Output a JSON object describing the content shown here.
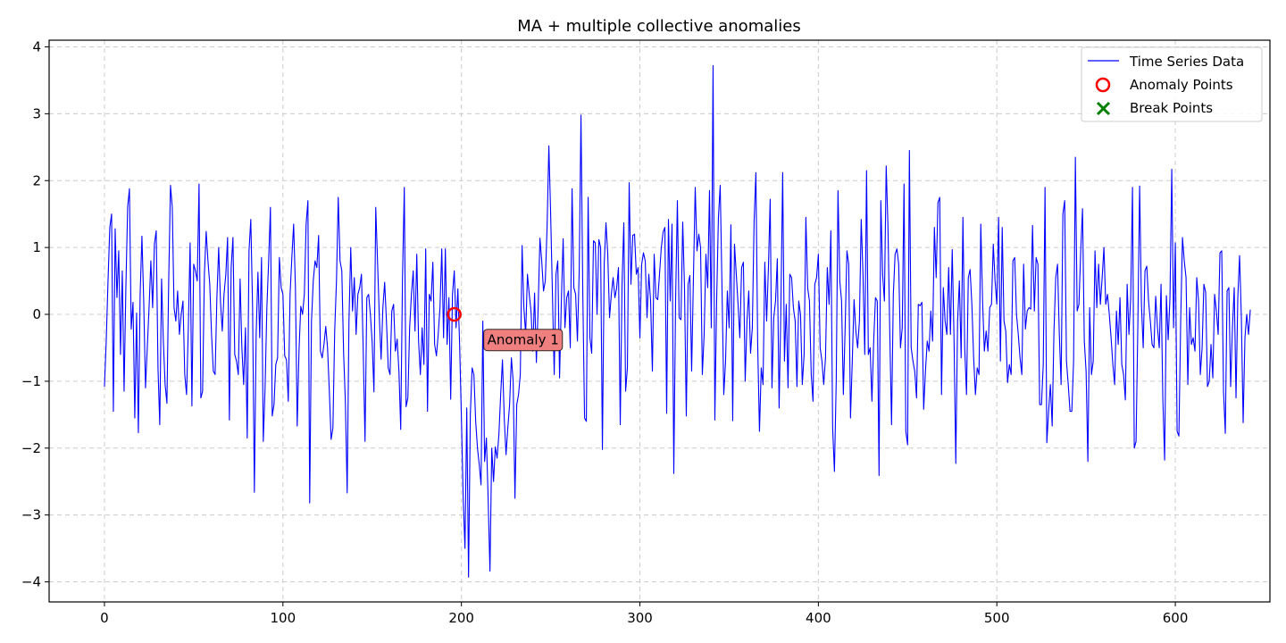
{
  "chart_data": {
    "type": "line",
    "title": "MA + multiple collective anomalies",
    "xlabel": "",
    "ylabel": "",
    "xlim": [
      -31,
      653
    ],
    "ylim": [
      -4.3,
      4.1
    ],
    "xticks": [
      0,
      100,
      200,
      300,
      400,
      500,
      600
    ],
    "xtick_labels": [
      "0",
      "100",
      "200",
      "300",
      "400",
      "500",
      "600"
    ],
    "yticks": [
      -4,
      -3,
      -2,
      -1,
      0,
      1,
      2,
      3,
      4
    ],
    "ytick_labels": [
      "−4",
      "−3",
      "−2",
      "−1",
      "0",
      "1",
      "2",
      "3",
      "4"
    ],
    "grid": true,
    "legend": {
      "position": "top-right",
      "entries": [
        "Time Series Data",
        "Anomaly Points",
        "Break Points"
      ]
    },
    "colors": {
      "line": "#0000ff",
      "anomaly": "#ff0000",
      "break": "#008000",
      "annotation_fill": "#f08080"
    },
    "series": [
      {
        "name": "Time Series Data",
        "x_start": 0,
        "values": [
          -1.08,
          -0.4,
          0.5,
          1.3,
          1.5,
          -1.45,
          1.28,
          0.25,
          0.95,
          -0.6,
          0.65,
          -1.15,
          0.4,
          1.6,
          1.88,
          -0.22,
          0.18,
          -1.55,
          0.02,
          -1.77,
          0.3,
          1.17,
          0.2,
          -1.1,
          -0.5,
          0.1,
          0.8,
          0.1,
          1.05,
          1.25,
          -0.8,
          -1.65,
          0.53,
          -0.4,
          -1.05,
          -1.33,
          0.5,
          1.93,
          1.6,
          0.1,
          -0.1,
          0.35,
          -0.3,
          0.0,
          0.2,
          -0.9,
          -1.2,
          -0.2,
          1.07,
          -1.37,
          0.75,
          0.65,
          0.5,
          1.95,
          -1.25,
          -1.15,
          0.6,
          1.24,
          0.8,
          0.45,
          -0.3,
          -0.85,
          -0.9,
          0.25,
          1.0,
          0.2,
          -0.25,
          0.3,
          0.6,
          1.15,
          -1.58,
          0.7,
          1.15,
          -0.6,
          -0.7,
          -0.9,
          0.53,
          -0.5,
          -1.05,
          -0.2,
          -1.85,
          0.95,
          1.42,
          0.1,
          -2.66,
          -0.3,
          0.63,
          -0.35,
          0.85,
          -1.9,
          -1.1,
          0.1,
          0.8,
          1.6,
          -1.52,
          -1.35,
          -0.75,
          -0.65,
          0.85,
          0.4,
          0.3,
          -0.62,
          -0.68,
          -1.3,
          0.3,
          0.85,
          1.35,
          0.4,
          -1.67,
          -0.55,
          0.12,
          0.0,
          0.3,
          1.35,
          1.7,
          -2.82,
          -0.1,
          0.5,
          0.8,
          0.7,
          1.18,
          -0.55,
          -0.65,
          -0.45,
          -0.18,
          -0.5,
          -1.15,
          -1.87,
          -1.7,
          -0.25,
          0.5,
          1.75,
          0.8,
          0.65,
          -0.58,
          -1.32,
          -2.67,
          -0.1,
          1.0,
          0.05,
          0.55,
          -0.3,
          0.3,
          0.4,
          0.6,
          -0.55,
          -1.9,
          0.25,
          0.3,
          0.0,
          -0.42,
          -1.16,
          1.6,
          0.8,
          -0.03,
          -0.67,
          0.1,
          0.48,
          -0.1,
          -0.8,
          -0.9,
          0.05,
          0.15,
          -0.55,
          -0.37,
          -0.85,
          -1.72,
          0.55,
          1.9,
          -1.38,
          -1.25,
          -0.2,
          0.3,
          0.65,
          -0.25,
          0.9,
          -0.4,
          -0.9,
          -0.2,
          -0.75,
          0.98,
          -1.45,
          0.3,
          0.2,
          0.78,
          -0.45,
          -0.62,
          -0.3,
          0.1,
          0.98,
          -0.35,
          0.98,
          -0.45,
          0.25,
          -1.27,
          0.3,
          0.65,
          -0.2,
          0.38,
          -0.45,
          -1.55,
          -2.75,
          -3.5,
          -1.4,
          -3.93,
          -1.5,
          -0.8,
          -0.9,
          -1.6,
          -2.0,
          -2.25,
          -2.55,
          -0.1,
          -2.2,
          -1.85,
          -2.78,
          -3.84,
          -2.0,
          -2.5,
          -1.98,
          -2.15,
          -1.8,
          -1.2,
          -0.68,
          -1.55,
          -2.1,
          -1.7,
          -1.35,
          -0.65,
          -1.0,
          -2.75,
          -1.35,
          -1.2,
          -0.9,
          1.03,
          0.1,
          -0.3,
          0.6,
          0.3,
          0.05,
          -0.55,
          0.32,
          -0.72,
          0.1,
          1.14,
          0.8,
          0.35,
          0.5,
          1.3,
          2.52,
          1.5,
          0.3,
          -0.9,
          0.6,
          0.8,
          -0.95,
          0.2,
          1.13,
          -0.2,
          0.25,
          0.35,
          -0.5,
          1.88,
          0.4,
          0.3,
          -0.4,
          0.65,
          2.98,
          0.35,
          -1.55,
          -1.6,
          1.75,
          -0.35,
          -0.58,
          1.1,
          1.07,
          0.0,
          1.12,
          1.0,
          -2.02,
          0.75,
          1.37,
          0.9,
          -0.05,
          0.3,
          0.55,
          0.25,
          0.4,
          0.7,
          -1.65,
          0.45,
          1.37,
          -1.15,
          -0.8,
          1.97,
          0.45,
          1.18,
          1.2,
          0.6,
          0.7,
          -0.35,
          0.75,
          0.92,
          0.8,
          -0.05,
          0.6,
          0.2,
          -0.85,
          0.9,
          0.25,
          0.22,
          0.6,
          1.0,
          1.23,
          1.3,
          -1.48,
          1.42,
          0.2,
          1.35,
          -2.38,
          0.2,
          1.7,
          -0.05,
          -0.08,
          1.38,
          0.4,
          -1.52,
          0.45,
          0.58,
          -0.85,
          0.55,
          1.9,
          0.95,
          1.2,
          1.0,
          -0.9,
          -0.3,
          0.9,
          0.4,
          1.85,
          -0.2,
          3.72,
          -1.58,
          0.2,
          1.45,
          1.93,
          0.4,
          -1.2,
          -0.7,
          0.35,
          -0.2,
          1.34,
          -1.59,
          1.05,
          0.6,
          0.15,
          -0.35,
          0.7,
          0.78,
          -1.0,
          -0.1,
          0.35,
          -0.58,
          -0.2,
          1.4,
          2.12,
          -0.45,
          -1.75,
          -0.8,
          -1.05,
          0.78,
          -0.1,
          0.68,
          1.72,
          -1.1,
          -0.05,
          0.2,
          0.83,
          -1.4,
          0.1,
          2.12,
          -0.7,
          0.15,
          -1.1,
          0.6,
          0.55,
          0.1,
          -0.1,
          -1.08,
          0.2,
          0.0,
          -1.05,
          -0.6,
          1.45,
          0.4,
          0.2,
          -0.9,
          -1.3,
          0.45,
          0.55,
          0.9,
          -0.5,
          -0.7,
          -1.05,
          -0.65,
          0.7,
          0.15,
          1.25,
          -1.7,
          -2.35,
          -1.0,
          1.85,
          0.5,
          0.2,
          -1.2,
          -0.2,
          0.95,
          0.75,
          -1.55,
          -0.7,
          0.22,
          -0.25,
          -0.5,
          -0.1,
          1.42,
          0.6,
          -0.6,
          2.15,
          -0.6,
          -0.5,
          -1.3,
          -0.4,
          0.25,
          0.2,
          -2.41,
          1.7,
          0.6,
          0.2,
          2.22,
          1.3,
          -0.25,
          -1.65,
          0.3,
          0.9,
          0.98,
          0.75,
          -0.5,
          -0.2,
          1.95,
          -1.75,
          -1.95,
          2.45,
          -0.5,
          -0.7,
          -0.85,
          -1.25,
          0.15,
          0.13,
          0.18,
          -1.42,
          -0.85,
          -0.4,
          -0.55,
          0.05,
          -0.4,
          1.3,
          0.55,
          1.67,
          1.75,
          -1.2,
          0.4,
          -0.1,
          -0.3,
          0.7,
          -0.3,
          0.97,
          -0.35,
          -2.23,
          -0.1,
          0.5,
          -0.65,
          1.45,
          -0.5,
          -1.2,
          0.55,
          0.67,
          0.15,
          -0.65,
          -1.2,
          -0.8,
          -0.9,
          1.35,
          0.2,
          -0.55,
          -0.25,
          -0.55,
          0.1,
          0.15,
          1.05,
          0.5,
          0.15,
          1.45,
          -0.7,
          1.3,
          -0.1,
          -0.25,
          -1.02,
          -0.75,
          -0.9,
          0.8,
          0.85,
          0.0,
          -0.3,
          -0.65,
          -0.9,
          0.75,
          -0.22,
          0.05,
          0.1,
          0.08,
          1.33,
          0.05,
          0.85,
          0.75,
          -1.35,
          -1.35,
          -0.75,
          1.9,
          -1.92,
          -1.45,
          -1.05,
          -1.67,
          -0.25,
          0.55,
          0.75,
          -0.3,
          -1.05,
          1.5,
          1.7,
          -0.7,
          -1.05,
          -1.45,
          -1.45,
          -0.7,
          2.35,
          0.05,
          0.15,
          0.95,
          1.58,
          -0.4,
          -0.85,
          -2.2,
          0.1,
          -0.9,
          -0.7,
          0.95,
          0.1,
          0.75,
          0.15,
          0.55,
          1.0,
          0.15,
          0.3,
          0.0,
          -0.35,
          -0.75,
          -1.05,
          0.05,
          -0.45,
          0.25,
          -0.75,
          -0.9,
          -1.28,
          0.45,
          -0.3,
          0.25,
          1.9,
          -2.0,
          -1.9,
          -0.15,
          1.92,
          0.15,
          -0.5,
          0.65,
          0.72,
          0.2,
          -0.1,
          -0.45,
          -0.5,
          0.27,
          -0.2,
          -0.5,
          0.45,
          -1.27,
          -2.18,
          0.28,
          -0.38,
          0.25,
          2.17,
          -0.2,
          1.07,
          -1.75,
          -1.82,
          -0.1,
          1.15,
          0.8,
          0.55,
          -1.05,
          0.1,
          -0.45,
          -0.35,
          -0.55,
          0.55,
          0.2,
          -0.9,
          -0.5,
          0.45,
          0.33,
          -1.08,
          -1.0,
          -0.45,
          -0.95,
          0.3,
          0.05,
          -0.3,
          0.92,
          0.95,
          -1.15,
          -1.78,
          0.35,
          0.4,
          -1.08,
          -0.2,
          0.4,
          -1.25,
          0.25,
          0.88,
          -0.05,
          -1.62,
          -0.35,
          0.0,
          -0.3,
          0.07
        ]
      }
    ],
    "anomaly_points": [
      {
        "x": 196,
        "y": 0.0
      }
    ],
    "break_points": [],
    "annotations": [
      {
        "text": "Anomaly 1",
        "x": 204,
        "y": -0.37
      }
    ]
  }
}
